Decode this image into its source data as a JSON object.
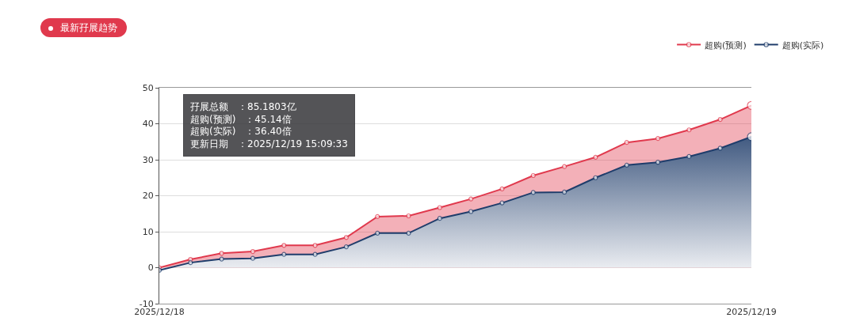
{
  "chart_data": {
    "type": "area",
    "title": "最新孖展趋势",
    "categories": [
      "2025/12/18",
      null,
      null,
      null,
      null,
      null,
      null,
      null,
      null,
      null,
      null,
      null,
      null,
      null,
      null,
      null,
      null,
      null,
      null,
      "2025/12/19"
    ],
    "series": [
      {
        "name": "超购(预测)",
        "color": "#e0394d",
        "values": [
          0,
          2.3,
          4.0,
          4.5,
          6.2,
          6.2,
          8.4,
          14.2,
          14.4,
          16.7,
          19.1,
          21.9,
          25.6,
          28.1,
          30.7,
          34.8,
          35.9,
          38.3,
          41.2,
          45.1
        ]
      },
      {
        "name": "超购(实际)",
        "color": "#1f3d6b",
        "values": [
          -0.7,
          1.4,
          2.4,
          2.6,
          3.7,
          3.7,
          5.8,
          9.6,
          9.6,
          13.7,
          15.6,
          18.0,
          20.9,
          21.0,
          25,
          28.5,
          29.3,
          30.9,
          33.2,
          36.4
        ]
      }
    ],
    "ylim": [
      -10,
      50
    ],
    "yticks": [
      -10,
      0,
      10,
      20,
      30,
      40,
      50
    ],
    "grid": "y",
    "legend": "top right",
    "marker": "circle",
    "line_style": "solid",
    "annotations": [
      "孖展总额　：85.1803亿",
      "超购(预测)　：45.14倍",
      "超购(实际)　：36.40倍",
      "更新日期　：2025/12/19 15:09:33"
    ]
  }
}
